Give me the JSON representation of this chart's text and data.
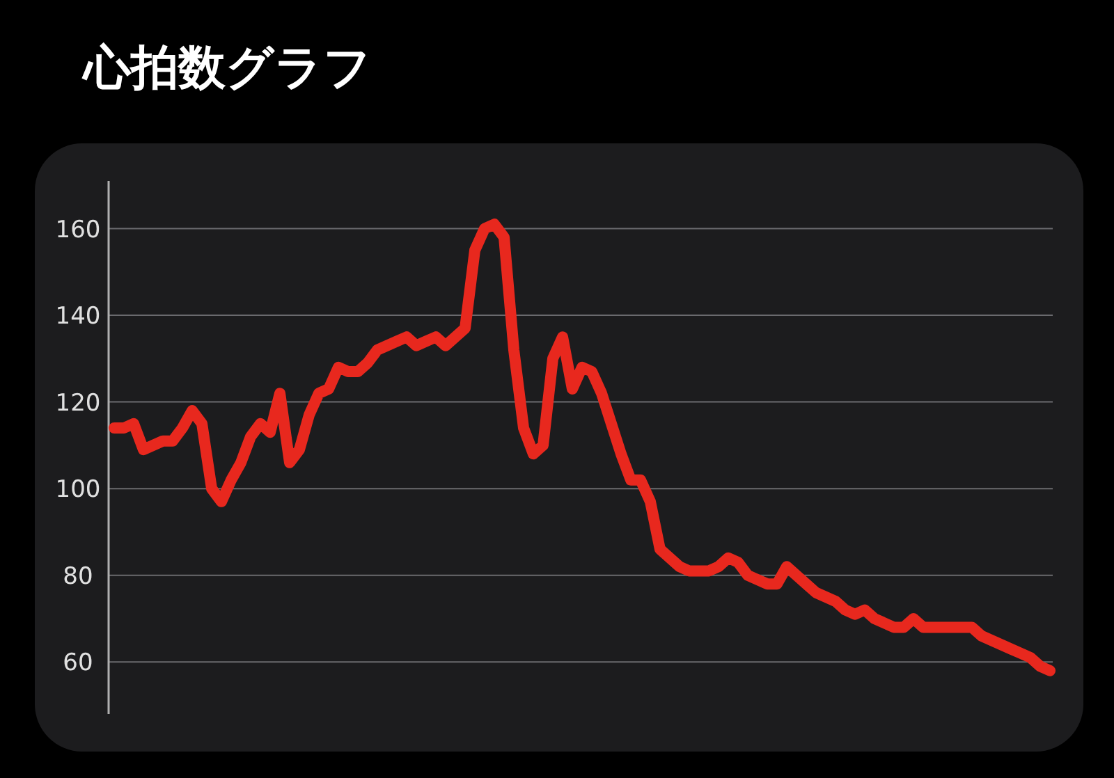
{
  "chart_data": {
    "type": "line",
    "title": "心拍数グラフ",
    "categories": [
      null,
      null,
      null,
      null,
      null,
      null,
      null,
      null,
      null,
      null,
      null,
      null,
      null,
      null,
      null,
      null,
      null,
      null,
      null,
      null,
      null,
      null,
      null,
      null,
      null,
      null,
      null,
      null,
      null,
      null,
      null,
      null,
      null,
      null,
      null,
      null,
      null,
      null,
      null,
      null,
      null,
      null,
      null,
      null,
      null,
      null,
      null,
      null,
      null,
      null,
      null,
      null,
      null,
      null,
      null,
      null,
      null,
      null,
      null,
      null,
      null,
      null,
      null,
      null,
      null,
      null,
      null,
      null,
      null,
      null,
      null,
      null,
      null,
      null,
      null,
      null,
      null,
      null,
      null,
      null,
      null,
      null,
      null,
      null,
      null,
      null,
      null,
      null,
      null,
      null,
      null,
      null,
      null,
      null,
      null,
      null,
      null
    ],
    "series": [
      {
        "color": "#e8281e",
        "values": [
          114,
          114,
          115,
          109,
          110,
          111,
          111,
          114,
          118,
          115,
          100,
          97,
          102,
          106,
          112,
          115,
          113,
          122,
          106,
          109,
          117,
          122,
          123,
          128,
          127,
          127,
          129,
          132,
          133,
          134,
          135,
          133,
          134,
          135,
          133,
          135,
          137,
          155,
          160,
          161,
          158,
          132,
          114,
          108,
          110,
          130,
          135,
          123,
          128,
          127,
          122,
          115,
          108,
          102,
          102,
          97,
          86,
          84,
          82,
          81,
          81,
          81,
          82,
          84,
          83,
          80,
          79,
          78,
          78,
          82,
          80,
          78,
          76,
          75,
          74,
          72,
          71,
          72,
          70,
          69,
          68,
          68,
          70,
          68,
          68,
          68,
          68,
          68,
          68,
          66,
          65,
          64,
          63,
          62,
          61,
          59,
          58
        ]
      }
    ],
    "ylim": [
      48,
      171
    ],
    "yticks": [
      60,
      80,
      100,
      120,
      140,
      160
    ],
    "grid": "y",
    "marker": "none",
    "line_style": "solid"
  }
}
